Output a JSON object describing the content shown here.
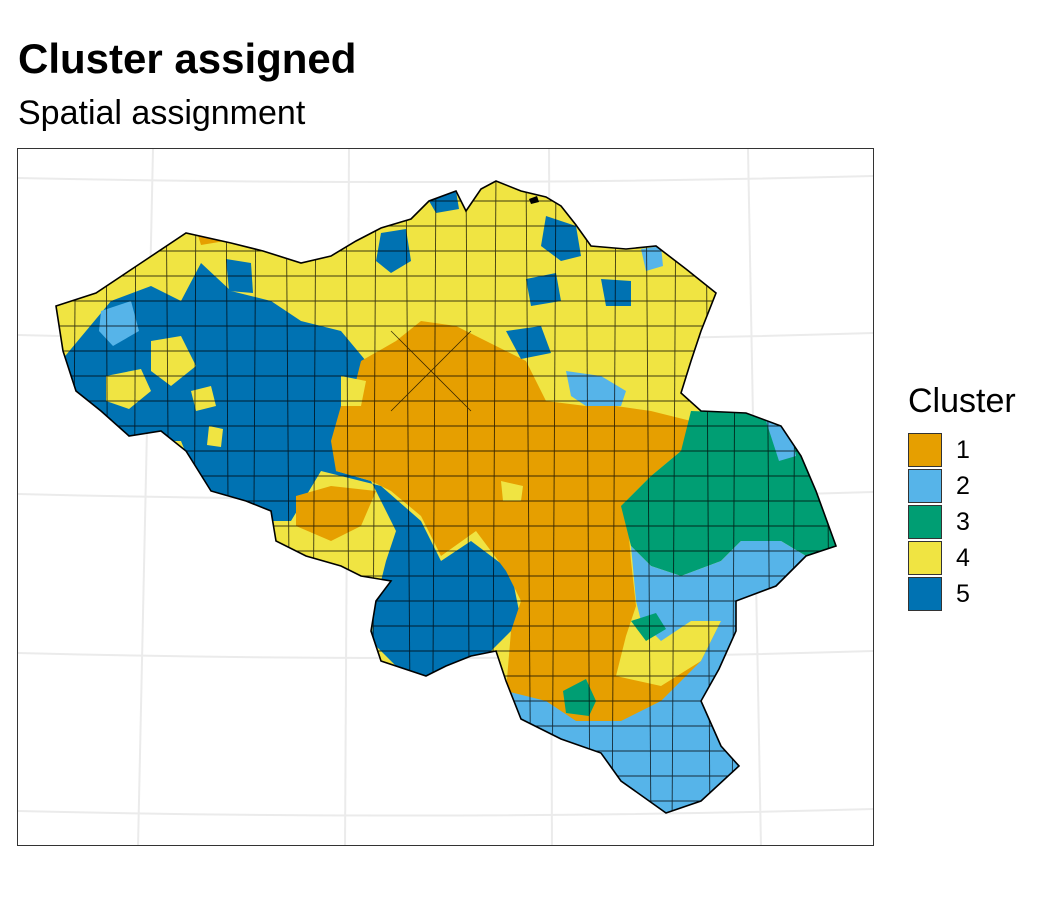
{
  "map": {
    "title": "Cluster assigned",
    "subtitle": "Spatial assignment",
    "region": "Belgium municipalities",
    "legend": {
      "title": "Cluster",
      "items": [
        {
          "label": "1",
          "color": "#E69F00"
        },
        {
          "label": "2",
          "color": "#56B4E9"
        },
        {
          "label": "3",
          "color": "#009E73"
        },
        {
          "label": "4",
          "color": "#F0E442"
        },
        {
          "label": "5",
          "color": "#0072B2"
        }
      ]
    },
    "colors": {
      "gridline": "#ebebeb",
      "border": "#000000",
      "panel_border": "#333333"
    }
  }
}
